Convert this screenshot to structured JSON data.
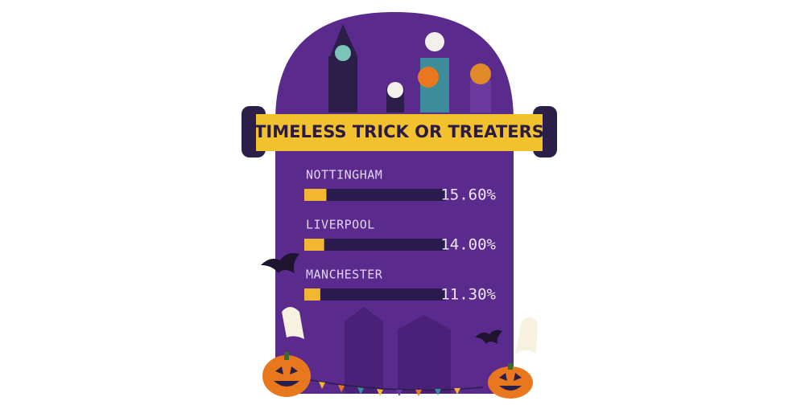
{
  "chart_data": {
    "type": "bar",
    "orientation": "horizontal",
    "title": "TIMELESS TRICK OR TREATERS",
    "categories": [
      "NOTTINGHAM",
      "LIVERPOOL",
      "MANCHESTER"
    ],
    "values": [
      15.6,
      14.0,
      11.3
    ],
    "value_labels": [
      "15.60%",
      "14.00%",
      "11.30%"
    ],
    "color": "#f2b632",
    "xlim": [
      0,
      100
    ]
  }
}
